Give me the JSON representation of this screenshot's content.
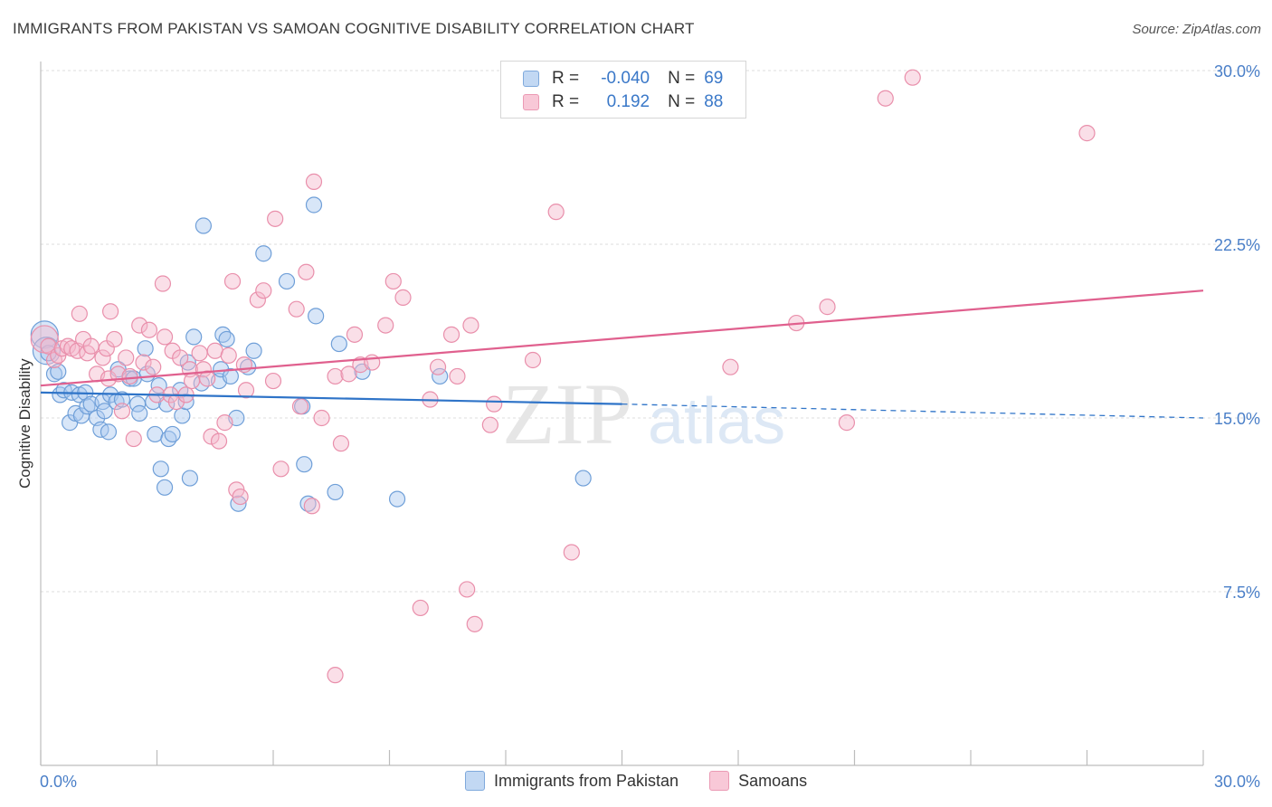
{
  "title": "IMMIGRANTS FROM PAKISTAN VS SAMOAN COGNITIVE DISABILITY CORRELATION CHART",
  "source": "Source: ZipAtlas.com",
  "watermark": {
    "zip": "ZIP",
    "atlas": "atlas"
  },
  "legend": {
    "rows": [
      {
        "r_label": "R =",
        "r_value": "-0.040",
        "n_label": "N =",
        "n_value": "69"
      },
      {
        "r_label": "R =",
        "r_value": "0.192",
        "n_label": "N =",
        "n_value": "88"
      }
    ]
  },
  "bottom_legend": [
    "Immigrants from Pakistan",
    "Samoans"
  ],
  "colors": {
    "pakistan_fill": "#a9c8ef",
    "pakistan_stroke": "#6f9fd8",
    "pakistan_line": "#2f74c8",
    "samoan_fill": "#f5b8cb",
    "samoan_stroke": "#e98fab",
    "samoan_line": "#e0608e",
    "tick_label": "#4a7fc8",
    "grid": "#dcdcdc"
  },
  "chart_data": {
    "type": "scatter",
    "title": "IMMIGRANTS FROM PAKISTAN VS SAMOAN COGNITIVE DISABILITY CORRELATION CHART",
    "xlabel": "",
    "ylabel": "Cognitive Disability",
    "xlim": [
      0,
      30
    ],
    "ylim": [
      0,
      30
    ],
    "x_tick_labels": [
      "0.0%",
      "30.0%"
    ],
    "y_ticks": [
      7.5,
      15.0,
      22.5,
      30.0
    ],
    "y_tick_labels": [
      "7.5%",
      "15.0%",
      "22.5%",
      "30.0%"
    ],
    "grid": true,
    "legend_position": "top-center",
    "series": [
      {
        "name": "Immigrants from Pakistan",
        "trend": {
          "x": [
            0,
            15
          ],
          "y": [
            16.1,
            15.6
          ],
          "dashed_to": {
            "x": 30,
            "y": 15.0
          }
        },
        "points": [
          [
            0.1,
            18.6,
            "L"
          ],
          [
            0.15,
            17.9,
            "L"
          ],
          [
            0.2,
            17.8,
            "M"
          ],
          [
            0.35,
            16.9,
            "M"
          ],
          [
            0.45,
            17.0,
            "M"
          ],
          [
            0.5,
            16.0,
            "M"
          ],
          [
            0.6,
            16.2,
            "M"
          ],
          [
            0.75,
            14.8,
            "M"
          ],
          [
            0.8,
            16.1,
            "M"
          ],
          [
            0.9,
            15.2,
            "M"
          ],
          [
            1.0,
            16.0,
            "M"
          ],
          [
            1.05,
            15.1,
            "M"
          ],
          [
            1.15,
            16.1,
            "M"
          ],
          [
            1.2,
            15.5,
            "M"
          ],
          [
            1.3,
            15.6,
            "M"
          ],
          [
            1.45,
            15.0,
            "M"
          ],
          [
            1.55,
            14.5,
            "M"
          ],
          [
            1.6,
            15.7,
            "M"
          ],
          [
            1.65,
            15.3,
            "M"
          ],
          [
            1.75,
            14.4,
            "M"
          ],
          [
            1.8,
            16.0,
            "M"
          ],
          [
            1.95,
            15.7,
            "M"
          ],
          [
            2.0,
            17.1,
            "M"
          ],
          [
            2.1,
            15.8,
            "M"
          ],
          [
            2.3,
            16.7,
            "M"
          ],
          [
            2.4,
            16.7,
            "M"
          ],
          [
            2.5,
            15.6,
            "M"
          ],
          [
            2.55,
            15.2,
            "M"
          ],
          [
            2.7,
            18.0,
            "M"
          ],
          [
            2.75,
            16.9,
            "M"
          ],
          [
            2.9,
            15.7,
            "M"
          ],
          [
            2.95,
            14.3,
            "M"
          ],
          [
            3.05,
            16.4,
            "M"
          ],
          [
            3.1,
            12.8,
            "M"
          ],
          [
            3.2,
            12.0,
            "M"
          ],
          [
            3.25,
            15.6,
            "M"
          ],
          [
            3.3,
            14.1,
            "M"
          ],
          [
            3.4,
            14.3,
            "M"
          ],
          [
            3.6,
            16.2,
            "M"
          ],
          [
            3.65,
            15.1,
            "M"
          ],
          [
            3.75,
            15.7,
            "M"
          ],
          [
            3.8,
            17.4,
            "M"
          ],
          [
            3.85,
            12.4,
            "M"
          ],
          [
            3.95,
            18.5,
            "M"
          ],
          [
            4.15,
            16.5,
            "M"
          ],
          [
            4.2,
            23.3,
            "M"
          ],
          [
            4.6,
            16.6,
            "M"
          ],
          [
            4.65,
            17.1,
            "M"
          ],
          [
            4.7,
            18.6,
            "M"
          ],
          [
            4.8,
            18.4,
            "M"
          ],
          [
            4.9,
            16.8,
            "M"
          ],
          [
            5.05,
            15.0,
            "M"
          ],
          [
            5.1,
            11.3,
            "M"
          ],
          [
            5.35,
            17.2,
            "M"
          ],
          [
            5.5,
            17.9,
            "M"
          ],
          [
            5.75,
            22.1,
            "M"
          ],
          [
            6.35,
            20.9,
            "M"
          ],
          [
            6.75,
            15.5,
            "M"
          ],
          [
            6.8,
            13.0,
            "M"
          ],
          [
            6.9,
            11.3,
            "M"
          ],
          [
            7.05,
            24.2,
            "M"
          ],
          [
            7.1,
            19.4,
            "M"
          ],
          [
            7.6,
            11.8,
            "M"
          ],
          [
            7.7,
            18.2,
            "M"
          ],
          [
            8.3,
            17.0,
            "M"
          ],
          [
            9.2,
            11.5,
            "M"
          ],
          [
            10.3,
            16.8,
            "M"
          ],
          [
            14.0,
            12.4,
            "M"
          ]
        ]
      },
      {
        "name": "Samoans",
        "trend": {
          "x": [
            0,
            30
          ],
          "y": [
            16.4,
            20.5
          ]
        },
        "points": [
          [
            0.1,
            18.4,
            "L"
          ],
          [
            0.2,
            18.1,
            "M"
          ],
          [
            0.35,
            17.5,
            "M"
          ],
          [
            0.45,
            17.7,
            "M"
          ],
          [
            0.55,
            18.0,
            "M"
          ],
          [
            0.7,
            18.1,
            "M"
          ],
          [
            0.8,
            18.0,
            "M"
          ],
          [
            0.95,
            17.9,
            "M"
          ],
          [
            1.0,
            19.5,
            "M"
          ],
          [
            1.1,
            18.4,
            "M"
          ],
          [
            1.2,
            17.8,
            "M"
          ],
          [
            1.3,
            18.1,
            "M"
          ],
          [
            1.45,
            16.9,
            "M"
          ],
          [
            1.6,
            17.6,
            "M"
          ],
          [
            1.7,
            18.0,
            "M"
          ],
          [
            1.75,
            16.7,
            "M"
          ],
          [
            1.8,
            19.6,
            "M"
          ],
          [
            1.9,
            18.4,
            "M"
          ],
          [
            2.0,
            16.9,
            "M"
          ],
          [
            2.1,
            15.3,
            "M"
          ],
          [
            2.2,
            17.6,
            "M"
          ],
          [
            2.3,
            16.8,
            "M"
          ],
          [
            2.4,
            14.1,
            "M"
          ],
          [
            2.55,
            19.0,
            "M"
          ],
          [
            2.65,
            17.4,
            "M"
          ],
          [
            2.8,
            18.8,
            "M"
          ],
          [
            2.9,
            17.2,
            "M"
          ],
          [
            3.0,
            16.0,
            "M"
          ],
          [
            3.15,
            20.8,
            "M"
          ],
          [
            3.2,
            18.5,
            "M"
          ],
          [
            3.35,
            16.0,
            "M"
          ],
          [
            3.4,
            17.9,
            "M"
          ],
          [
            3.5,
            15.7,
            "M"
          ],
          [
            3.6,
            17.6,
            "M"
          ],
          [
            3.75,
            16.0,
            "M"
          ],
          [
            3.85,
            17.1,
            "M"
          ],
          [
            3.9,
            16.6,
            "M"
          ],
          [
            4.1,
            17.8,
            "M"
          ],
          [
            4.2,
            17.1,
            "M"
          ],
          [
            4.3,
            16.7,
            "M"
          ],
          [
            4.4,
            14.2,
            "M"
          ],
          [
            4.5,
            17.9,
            "M"
          ],
          [
            4.6,
            14.0,
            "M"
          ],
          [
            4.75,
            14.8,
            "M"
          ],
          [
            4.85,
            17.7,
            "M"
          ],
          [
            4.95,
            20.9,
            "M"
          ],
          [
            5.05,
            11.9,
            "M"
          ],
          [
            5.15,
            11.6,
            "M"
          ],
          [
            5.25,
            17.3,
            "M"
          ],
          [
            5.3,
            16.2,
            "M"
          ],
          [
            5.6,
            20.1,
            "M"
          ],
          [
            5.75,
            20.5,
            "M"
          ],
          [
            6.0,
            16.6,
            "M"
          ],
          [
            6.05,
            23.6,
            "M"
          ],
          [
            6.2,
            12.8,
            "M"
          ],
          [
            6.6,
            19.7,
            "M"
          ],
          [
            6.7,
            15.5,
            "M"
          ],
          [
            6.85,
            21.3,
            "M"
          ],
          [
            7.0,
            11.2,
            "M"
          ],
          [
            7.05,
            25.2,
            "M"
          ],
          [
            7.25,
            15.0,
            "M"
          ],
          [
            7.6,
            16.8,
            "M"
          ],
          [
            7.75,
            13.9,
            "M"
          ],
          [
            7.95,
            16.9,
            "M"
          ],
          [
            8.1,
            18.6,
            "M"
          ],
          [
            8.25,
            17.3,
            "M"
          ],
          [
            8.55,
            17.4,
            "M"
          ],
          [
            8.9,
            19.0,
            "M"
          ],
          [
            9.1,
            20.9,
            "M"
          ],
          [
            9.35,
            20.2,
            "M"
          ],
          [
            10.05,
            15.8,
            "M"
          ],
          [
            10.25,
            17.2,
            "M"
          ],
          [
            10.6,
            18.6,
            "M"
          ],
          [
            10.75,
            16.8,
            "M"
          ],
          [
            11.1,
            19.0,
            "M"
          ],
          [
            11.6,
            14.7,
            "M"
          ],
          [
            11.7,
            15.6,
            "M"
          ],
          [
            12.7,
            17.5,
            "M"
          ],
          [
            13.3,
            23.9,
            "M"
          ],
          [
            13.7,
            9.2,
            "M"
          ],
          [
            7.6,
            3.9,
            "M"
          ],
          [
            9.8,
            6.8,
            "M"
          ],
          [
            11.0,
            7.6,
            "M"
          ],
          [
            11.2,
            6.1,
            "M"
          ],
          [
            17.8,
            17.2,
            "M"
          ],
          [
            19.5,
            19.1,
            "M"
          ],
          [
            20.3,
            19.8,
            "M"
          ],
          [
            20.8,
            14.8,
            "M"
          ],
          [
            21.8,
            28.8,
            "M"
          ],
          [
            22.5,
            29.7,
            "M"
          ],
          [
            27.0,
            27.3,
            "M"
          ]
        ]
      }
    ]
  }
}
